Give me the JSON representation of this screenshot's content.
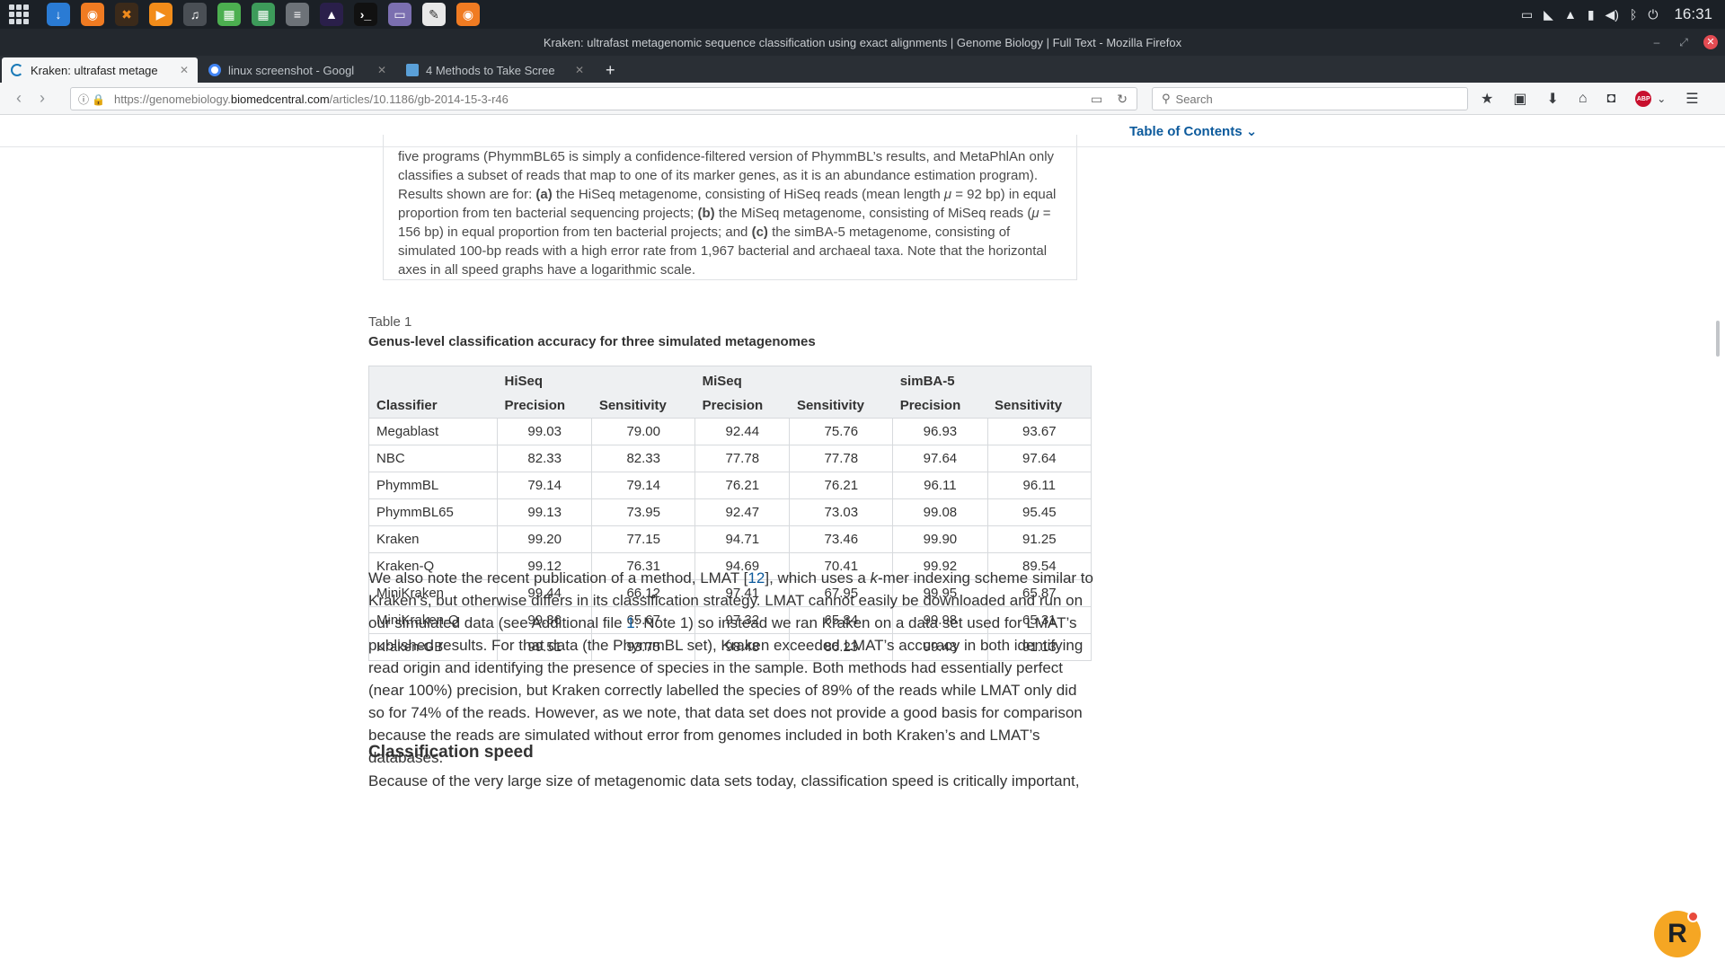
{
  "system": {
    "clock": "16:31"
  },
  "window": {
    "title": "Kraken: ultrafast metagenomic sequence classification using exact alignments | Genome Biology | Full Text - Mozilla Firefox"
  },
  "tabs": [
    {
      "label": "Kraken: ultrafast metage",
      "active": true,
      "icon_color": "#1a7ab8"
    },
    {
      "label": "linux screenshot - Googl",
      "active": false,
      "icon_color": "#4285f4"
    },
    {
      "label": "4 Methods to Take Scree",
      "active": false,
      "icon_color": "#5aa0d8"
    }
  ],
  "nav": {
    "url_prefix": "https://genomebiology.",
    "url_domain": "biomedcentral.com",
    "url_path": "/articles/10.1186/gb-2014-15-3-r46",
    "search_placeholder": "Search"
  },
  "page": {
    "toc_label": "Table of Contents ⌄",
    "figure_caption_1": "five programs (PhymmBL65 is simply a confidence-filtered version of PhymmBL’s results, and MetaPhlAn only classifies a subset of reads that map to one of its marker genes, as it is an abundance estimation program). Results shown are for: ",
    "figure_caption_a": "(a)",
    "figure_caption_2": " the HiSeq metagenome, consisting of HiSeq reads (mean length ",
    "figure_caption_mu1": "μ",
    "figure_caption_3": " = 92 bp) in equal proportion from ten bacterial sequencing projects; ",
    "figure_caption_b": "(b)",
    "figure_caption_4": " the MiSeq metagenome, consisting of MiSeq reads (",
    "figure_caption_mu2": "μ",
    "figure_caption_5": " = 156 bp) in equal proportion from ten bacterial projects; and ",
    "figure_caption_c": "(c)",
    "figure_caption_6": " the simBA-5 metagenome, consisting of simulated 100-bp reads with a high error rate from 1,967 bacterial and archaeal taxa. Note that the horizontal axes in all speed graphs have a logarithmic scale.",
    "table_label": "Table 1",
    "table_title": "Genus-level classification accuracy for three simulated metagenomes",
    "table": {
      "groups": [
        "HiSeq",
        "MiSeq",
        "simBA-5"
      ],
      "col_classifier": "Classifier",
      "col_precision": "Precision",
      "col_sensitivity": "Sensitivity",
      "rows": [
        [
          "Megablast",
          "99.03",
          "79.00",
          "92.44",
          "75.76",
          "96.93",
          "93.67"
        ],
        [
          "NBC",
          "82.33",
          "82.33",
          "77.78",
          "77.78",
          "97.64",
          "97.64"
        ],
        [
          "PhymmBL",
          "79.14",
          "79.14",
          "76.21",
          "76.21",
          "96.11",
          "96.11"
        ],
        [
          "PhymmBL65",
          "99.13",
          "73.95",
          "92.47",
          "73.03",
          "99.08",
          "95.45"
        ],
        [
          "Kraken",
          "99.20",
          "77.15",
          "94.71",
          "73.46",
          "99.90",
          "91.25"
        ],
        [
          "Kraken-Q",
          "99.12",
          "76.31",
          "94.69",
          "70.41",
          "99.92",
          "89.54"
        ],
        [
          "MiniKraken",
          "99.44",
          "66.12",
          "97.41",
          "67.95",
          "99.95",
          "65.87"
        ],
        [
          "MiniKraken-Q",
          "99.36",
          "65.67",
          "97.32",
          "65.84",
          "99.98",
          "65.31"
        ],
        [
          "Kraken-GB",
          "99.51",
          "93.75",
          "98.48",
          "86.23",
          "99.48",
          "91.13"
        ]
      ]
    },
    "para1_a": "We also note the recent publication of a method, LMAT [",
    "para1_ref12": "12",
    "para1_b": "], which uses a ",
    "para1_k": "k",
    "para1_c": "-mer indexing scheme similar to Kraken’s, but otherwise differs in its classification strategy. LMAT cannot easily be downloaded and run on our simulated data (see Additional file ",
    "para1_ref1": "1",
    "para1_d": ": Note 1) so instead we ran Kraken on a data set used for LMAT’s published results. For that data (the PhymmBL set), Kraken exceeded LMAT’s accuracy in both identifying read origin and identifying the presence of species in the sample. Both methods had essentially perfect (near 100%) precision, but Kraken correctly labelled the species of 89% of the reads while LMAT only did so for 74% of the reads. However, as we note, that data set does not provide a good basis for comparison because the reads are simulated without error from genomes included in both Kraken’s and LMAT’s databases.",
    "section_heading": "Classification speed",
    "para2": "Because of the very large size of metagenomic data sets today, classification speed is critically important,",
    "badge_letter": "R"
  }
}
